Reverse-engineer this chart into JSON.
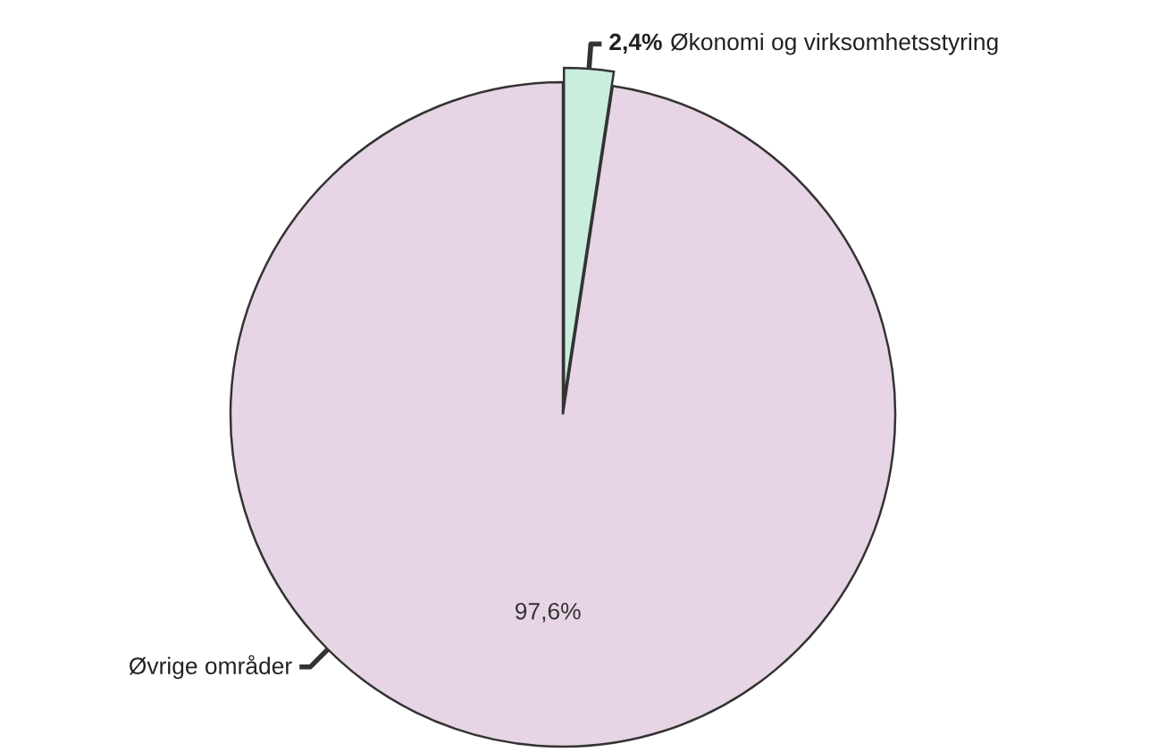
{
  "chart_data": {
    "type": "pie",
    "categories": [
      "Økonomi og virksomhetsstyring",
      "Øvrige områder"
    ],
    "values": [
      2.4,
      97.6
    ],
    "value_labels": [
      "2,4%",
      "97,6%"
    ],
    "colors": [
      "#c9eedd",
      "#e7d5e5"
    ],
    "legend": false
  }
}
